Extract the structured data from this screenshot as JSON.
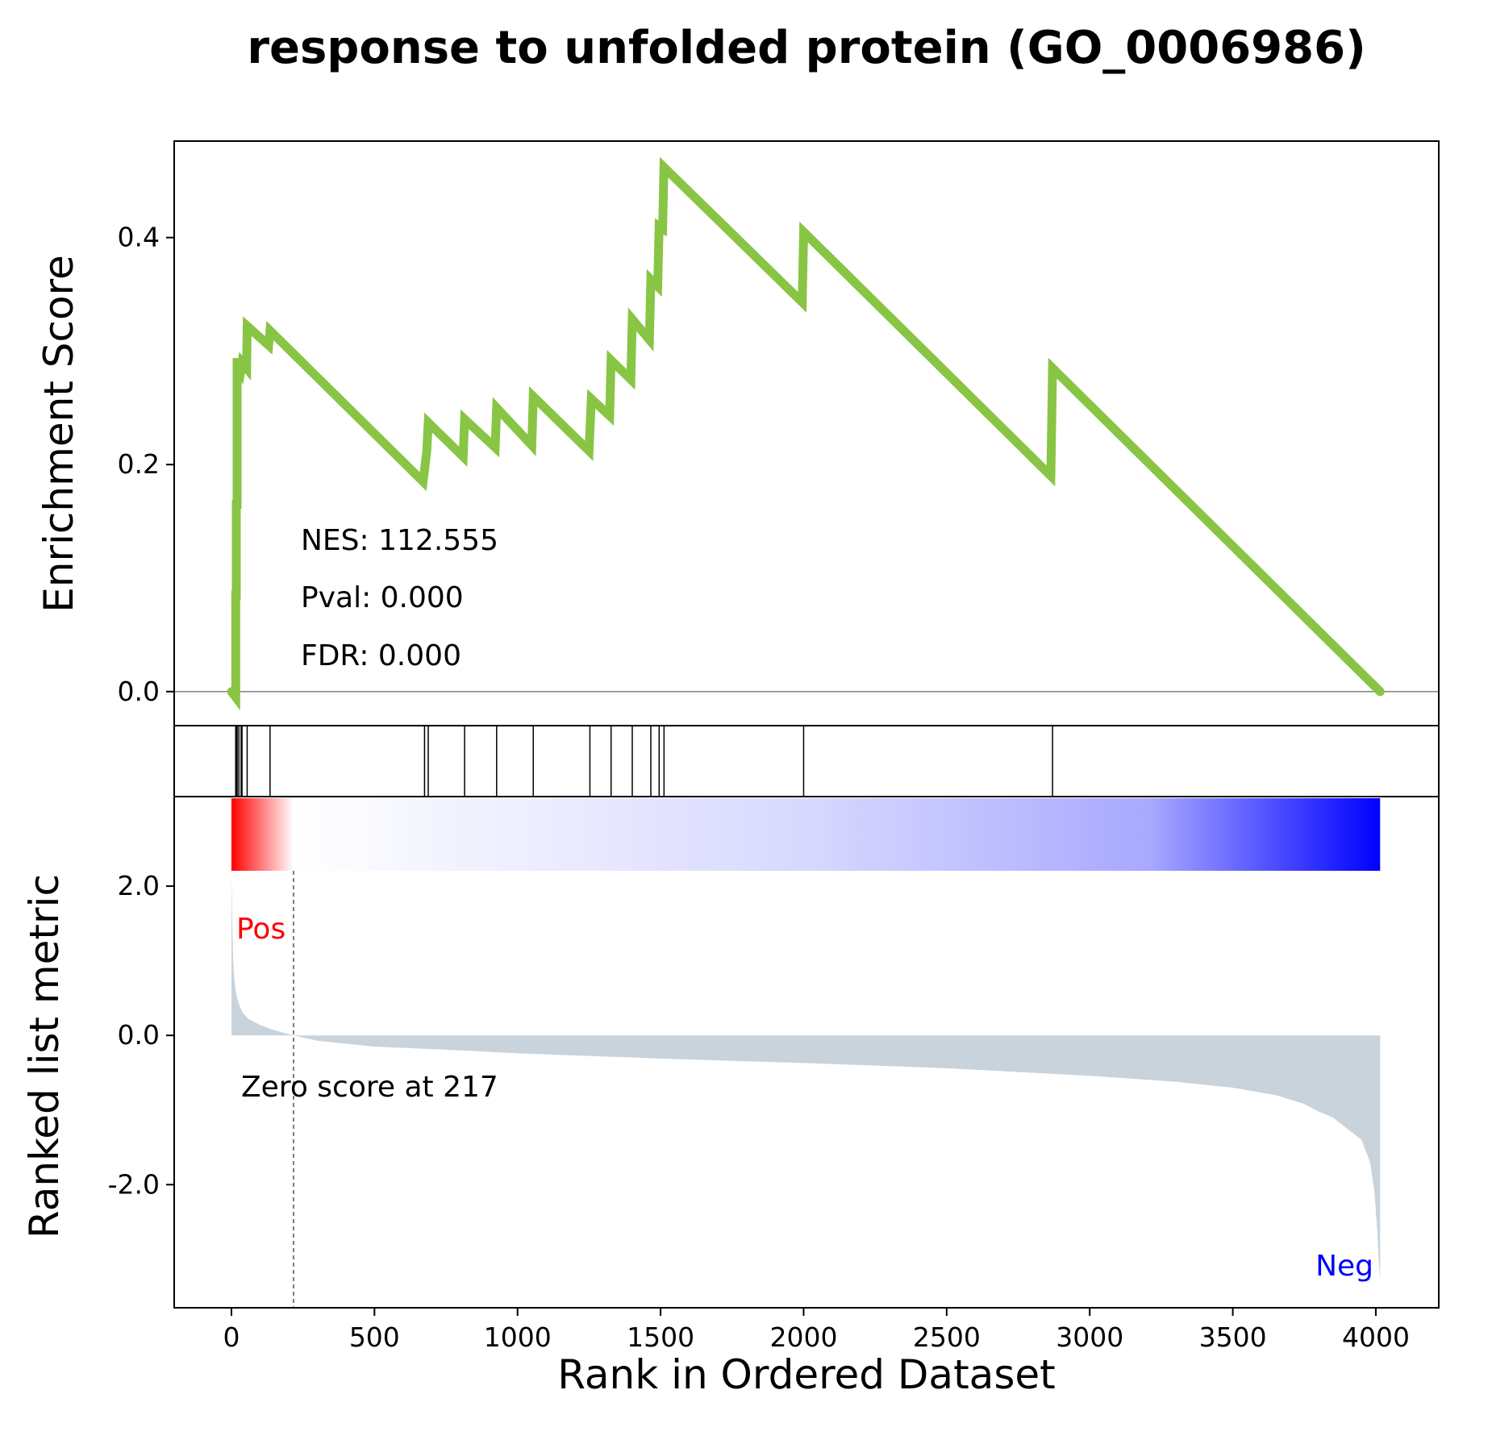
{
  "chart_data": {
    "type": "line",
    "title": "response to unfolded protein (GO_0006986)",
    "xlabel": "Rank in Ordered Dataset",
    "xlim": [
      -200,
      4220
    ],
    "x_ticks": [
      {
        "value": 0,
        "label": "0"
      },
      {
        "value": 500,
        "label": "500"
      },
      {
        "value": 1000,
        "label": "1000"
      },
      {
        "value": 1500,
        "label": "1500"
      },
      {
        "value": 2000,
        "label": "2000"
      },
      {
        "value": 2500,
        "label": "2500"
      },
      {
        "value": 3000,
        "label": "3000"
      },
      {
        "value": 3500,
        "label": "3500"
      },
      {
        "value": 4000,
        "label": "4000"
      }
    ],
    "es_panel": {
      "ylabel": "Enrichment Score",
      "ylim": [
        -0.03,
        0.485
      ],
      "y_ticks": [
        {
          "value": 0.0,
          "label": "0.0"
        },
        {
          "value": 0.2,
          "label": "0.2"
        },
        {
          "value": 0.4,
          "label": "0.4"
        }
      ],
      "line_color": "#88c544",
      "series": {
        "name": "",
        "x": [
          0,
          15,
          15,
          17,
          17,
          20,
          20,
          26,
          26,
          34,
          34,
          37,
          37,
          53,
          53,
          55,
          55,
          130,
          130,
          135,
          135,
          670,
          670,
          683,
          683,
          688,
          688,
          810,
          810,
          815,
          815,
          922,
          922,
          927,
          927,
          1050,
          1050,
          1055,
          1055,
          1250,
          1250,
          1258,
          1258,
          1322,
          1322,
          1327,
          1327,
          1396,
          1396,
          1401,
          1401,
          1461,
          1461,
          1466,
          1466,
          1490,
          1490,
          1495,
          1495,
          1507,
          1507,
          1512,
          1512,
          1995,
          1995,
          2000,
          2000,
          2864,
          2864,
          2870,
          2870,
          4015
        ],
        "y": [
          0.0,
          -0.005,
          0.085,
          0.085,
          0.165,
          0.165,
          0.29,
          0.29,
          0.29,
          0.285,
          0.285,
          0.29,
          0.29,
          0.285,
          0.285,
          0.322,
          0.322,
          0.305,
          0.305,
          0.318,
          0.318,
          0.185,
          0.185,
          0.212,
          0.212,
          0.237,
          0.237,
          0.207,
          0.207,
          0.24,
          0.24,
          0.215,
          0.215,
          0.25,
          0.25,
          0.217,
          0.217,
          0.26,
          0.26,
          0.212,
          0.212,
          0.258,
          0.258,
          0.243,
          0.243,
          0.292,
          0.292,
          0.275,
          0.275,
          0.328,
          0.328,
          0.31,
          0.31,
          0.363,
          0.363,
          0.357,
          0.357,
          0.41,
          0.41,
          0.408,
          0.408,
          0.462,
          0.462,
          0.343,
          0.343,
          0.405,
          0.405,
          0.19,
          0.19,
          0.285,
          0.285,
          0.0
        ]
      },
      "annotations": [
        {
          "text": "NES: 112.555"
        },
        {
          "text": "Pval: 0.000"
        },
        {
          "text": "FDR: 0.000"
        }
      ]
    },
    "hits_panel": {
      "hit_positions": [
        15,
        17,
        20,
        26,
        34,
        37,
        55,
        135,
        675,
        688,
        815,
        927,
        1055,
        1253,
        1327,
        1401,
        1466,
        1495,
        1512,
        2000,
        2870
      ],
      "line_color": "#000000"
    },
    "heatmap": {
      "x_range": [
        0,
        4015
      ],
      "colors_from": "#ff0000",
      "colors_mid": "#ffffff",
      "colors_to": "#0000ff",
      "zero_fraction": 0.054
    },
    "metric_panel": {
      "ylabel": "Ranked list metric",
      "ylim": [
        -3.65,
        3.2
      ],
      "y_ticks": [
        {
          "value": 2.0,
          "label": "2.0"
        },
        {
          "value": 0.0,
          "label": "0.0"
        },
        {
          "value": -2.0,
          "label": "-2.0"
        }
      ],
      "fill_color": "#c8d3dc",
      "x": [
        0,
        3,
        6,
        10,
        15,
        20,
        30,
        40,
        60,
        100,
        150,
        217,
        300,
        500,
        800,
        1000,
        1500,
        2000,
        2500,
        3000,
        3300,
        3500,
        3650,
        3750,
        3800,
        3850,
        3900,
        3950,
        3980,
        3995,
        4005,
        4010,
        4015
      ],
      "y": [
        2.18,
        1.5,
        1.0,
        0.75,
        0.6,
        0.5,
        0.38,
        0.3,
        0.22,
        0.14,
        0.07,
        0.0,
        -0.07,
        -0.15,
        -0.2,
        -0.24,
        -0.31,
        -0.37,
        -0.44,
        -0.54,
        -0.62,
        -0.7,
        -0.8,
        -0.92,
        -1.02,
        -1.1,
        -1.25,
        -1.4,
        -1.7,
        -2.1,
        -2.6,
        -3.0,
        -3.3
      ],
      "labels": {
        "pos": "Pos",
        "neg": "Neg",
        "zero_note": "Zero score at 217"
      },
      "pos_color": "#ff0000",
      "neg_color": "#0000ff",
      "zero_cross_x": 217
    }
  }
}
